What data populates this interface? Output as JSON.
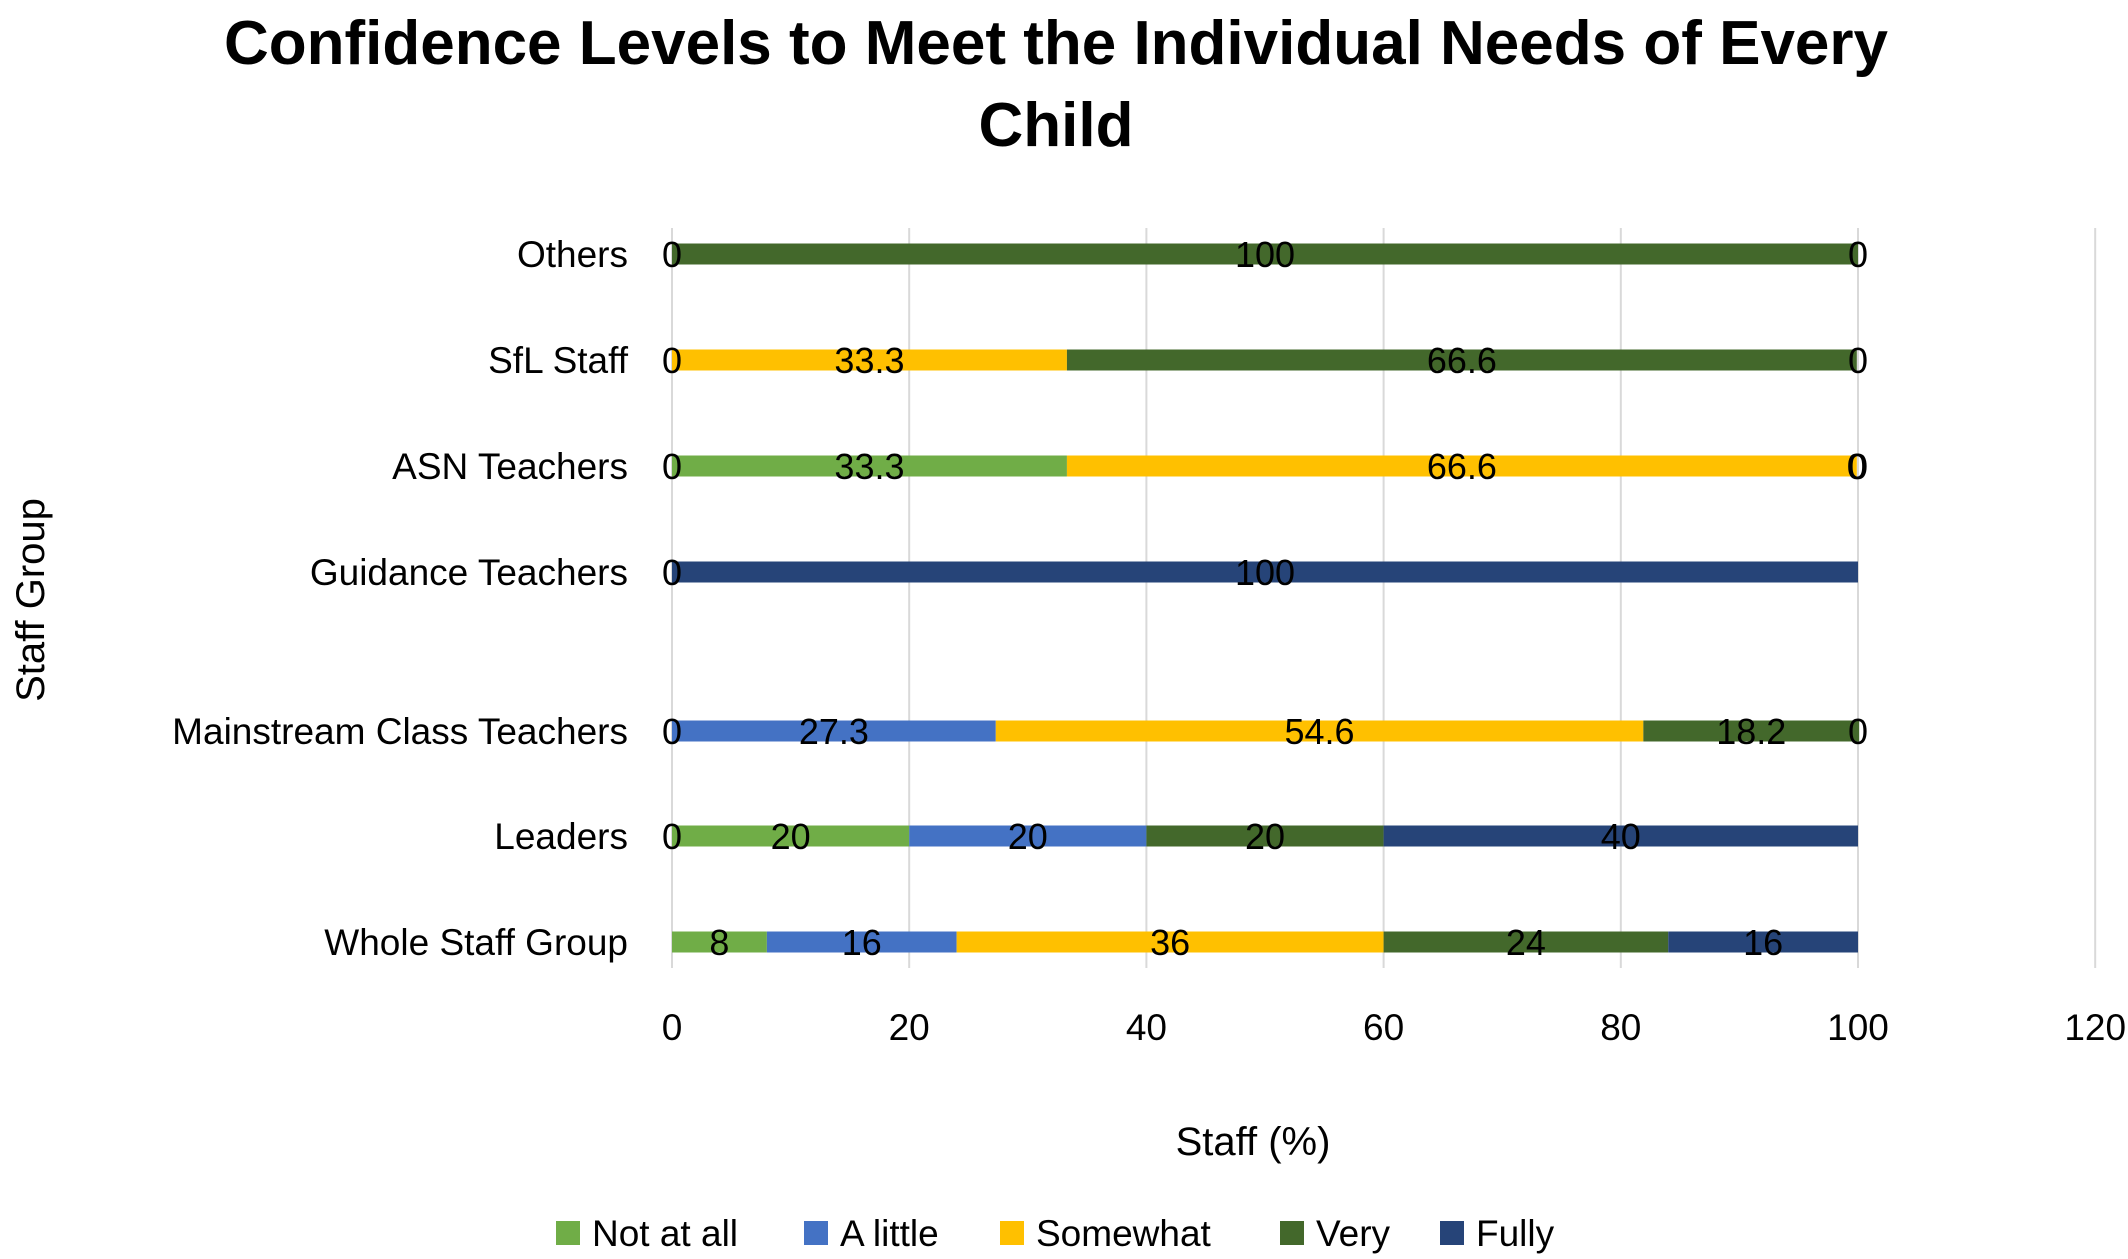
{
  "chart_data": {
    "type": "bar",
    "orientation": "horizontal",
    "stacked": true,
    "title_lines": [
      "Confidence Levels to Meet the Individual Needs of Every",
      "Child"
    ],
    "xlabel": "Staff (%)",
    "ylabel": "Staff Group",
    "xlim": [
      0,
      120
    ],
    "xticks": [
      "0",
      "20",
      "40",
      "60",
      "80",
      "100",
      "120"
    ],
    "grid": "vertical",
    "legend_position": "bottom",
    "categories": [
      "Others",
      "SfL Staff",
      "ASN Teachers",
      "Guidance Teachers",
      "Mainstream Class Teachers",
      "Leaders",
      "Whole Staff Group"
    ],
    "series": [
      {
        "name": "Not at all",
        "color": "#70AD47",
        "values": [
          0,
          0,
          33.3,
          0,
          0,
          20,
          8
        ],
        "labels": [
          "",
          "",
          "33.3",
          "",
          "",
          "20",
          "8"
        ]
      },
      {
        "name": "A little",
        "color": "#4472C4",
        "values": [
          0,
          0,
          0,
          0,
          27.3,
          20,
          16
        ],
        "labels": [
          "",
          "",
          "",
          "",
          "27.3",
          "20",
          "16"
        ]
      },
      {
        "name": "Somewhat",
        "color": "#FFC000",
        "values": [
          0,
          33.3,
          66.6,
          0,
          54.6,
          0,
          36
        ],
        "labels": [
          "",
          "33.3",
          "66.6",
          "",
          "54.6",
          "",
          "36"
        ]
      },
      {
        "name": "Very",
        "color": "#43682B",
        "values": [
          100,
          66.6,
          0,
          0,
          18.2,
          20,
          24
        ],
        "labels": [
          "100",
          "66.6",
          "0",
          "",
          "18.2",
          "20",
          "24"
        ]
      },
      {
        "name": "Fully",
        "color": "#264478",
        "values": [
          0,
          0,
          0,
          100,
          0,
          40,
          16
        ],
        "labels": [
          "",
          "",
          "",
          "100",
          "",
          "40",
          "16"
        ]
      }
    ],
    "extra_labels": [
      {
        "category": "Others",
        "texts": [
          "0",
          "0"
        ]
      },
      {
        "category": "SfL Staff",
        "texts": [
          "0",
          "0"
        ]
      },
      {
        "category": "ASN Teachers",
        "texts": [
          "0",
          "0"
        ]
      },
      {
        "category": "Guidance Teachers",
        "texts": [
          "0"
        ]
      },
      {
        "category": "Mainstream Class Teachers",
        "texts": [
          "0",
          "0"
        ]
      },
      {
        "category": "Leaders",
        "texts": [
          "0"
        ]
      }
    ]
  }
}
